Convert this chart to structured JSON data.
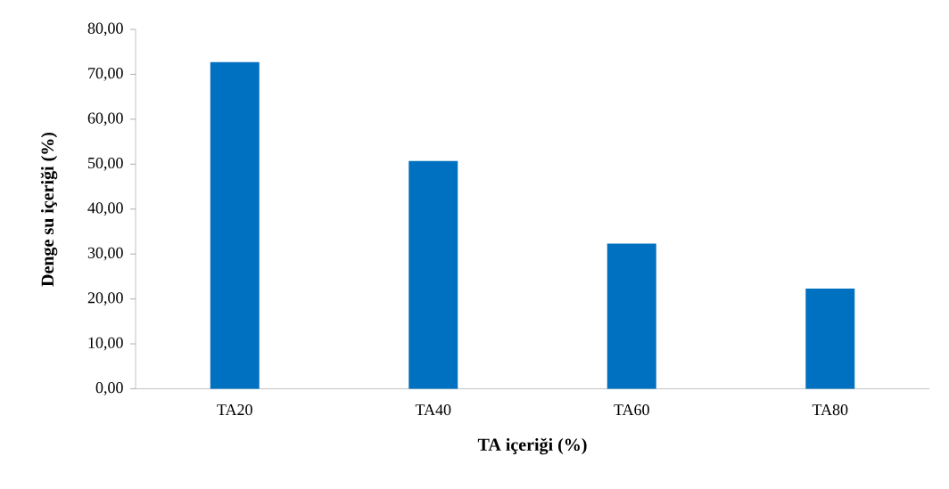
{
  "chart_data": {
    "type": "bar",
    "xlabel": "TA içeriği (%)",
    "ylabel": "Denge su içeriği (%)",
    "categories": [
      "TA20",
      "TA40",
      "TA60",
      "TA80"
    ],
    "values": [
      72.7,
      50.7,
      32.3,
      22.3
    ],
    "color": "#0070c0",
    "ylim": [
      0,
      80
    ],
    "yticks": [
      {
        "value": 0,
        "label": "0,00"
      },
      {
        "value": 10,
        "label": "10,00"
      },
      {
        "value": 20,
        "label": "20,00"
      },
      {
        "value": 30,
        "label": "30,00"
      },
      {
        "value": 40,
        "label": "40,00"
      },
      {
        "value": 50,
        "label": "50,00"
      },
      {
        "value": 60,
        "label": "60,00"
      },
      {
        "value": 70,
        "label": "70,00"
      },
      {
        "value": 80,
        "label": "80,00"
      }
    ],
    "grid": false
  }
}
